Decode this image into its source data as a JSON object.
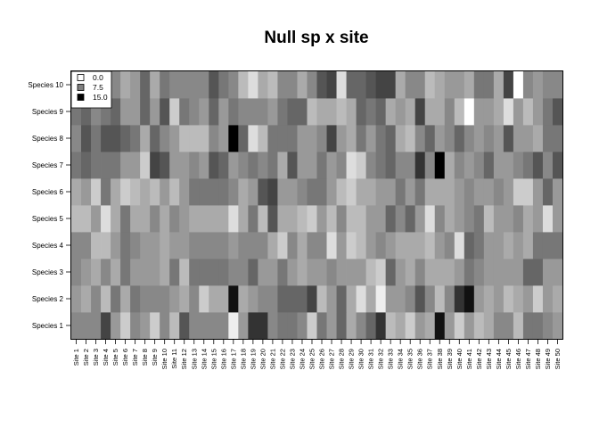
{
  "chart_data": {
    "type": "heatmap",
    "title": "Null sp x site",
    "xlabel": "",
    "ylabel": "",
    "rows": [
      "Species 1",
      "Species 2",
      "Species 3",
      "Species 4",
      "Species 5",
      "Species 6",
      "Species 7",
      "Species 8",
      "Species 9",
      "Species 10"
    ],
    "columns": [
      "Site 1",
      "Site 2",
      "Site 3",
      "Site 4",
      "Site 5",
      "Site 6",
      "Site 7",
      "Site 8",
      "Site 9",
      "Site 10",
      "Site 11",
      "Site 12",
      "Site 13",
      "Site 14",
      "Site 15",
      "Site 16",
      "Site 17",
      "Site 18",
      "Site 19",
      "Site 20",
      "Site 21",
      "Site 22",
      "Site 23",
      "Site 24",
      "Site 25",
      "Site 26",
      "Site 27",
      "Site 28",
      "Site 29",
      "Site 30",
      "Site 31",
      "Site 32",
      "Site 33",
      "Site 34",
      "Site 35",
      "Site 36",
      "Site 37",
      "Site 38",
      "Site 39",
      "Site 40",
      "Site 41",
      "Site 42",
      "Site 43",
      "Site 44",
      "Site 45",
      "Site 46",
      "Site 47",
      "Site 48",
      "Site 49",
      "Site 50"
    ],
    "value_range": [
      0,
      15
    ],
    "color_scale": {
      "low": "#ffffff",
      "high": "#000000"
    },
    "legend": {
      "position": "top-left",
      "entries": [
        {
          "label": "0.0",
          "color": "#ffffff"
        },
        {
          "label": "7.5",
          "color": "#808080"
        },
        {
          "label": "15.0",
          "color": "#000000"
        }
      ]
    },
    "values": [
      [
        7,
        7,
        7,
        11,
        6,
        3,
        7,
        6,
        3,
        7,
        4,
        10,
        7,
        7,
        7,
        7,
        1,
        6,
        12,
        12,
        7,
        8,
        8,
        7,
        3,
        8,
        6,
        9,
        5,
        7,
        9,
        12,
        4,
        5,
        3,
        6,
        5,
        14,
        6,
        3,
        6,
        4,
        5,
        7,
        7,
        4,
        8,
        8,
        7,
        6
      ],
      [
        6,
        5,
        7,
        4,
        8,
        5,
        8,
        7,
        7,
        7,
        6,
        5,
        7,
        3,
        5,
        5,
        14,
        5,
        6,
        7,
        7,
        9,
        9,
        9,
        11,
        4,
        6,
        9,
        5,
        2,
        5,
        1,
        6,
        6,
        7,
        10,
        7,
        4,
        7,
        12,
        14,
        6,
        5,
        6,
        4,
        5,
        6,
        3,
        6,
        5
      ],
      [
        7,
        6,
        5,
        7,
        5,
        8,
        6,
        6,
        6,
        5,
        8,
        4,
        8,
        8,
        8,
        8,
        7,
        7,
        9,
        6,
        6,
        8,
        6,
        5,
        6,
        6,
        7,
        6,
        6,
        6,
        4,
        3,
        9,
        6,
        5,
        7,
        5,
        5,
        5,
        6,
        8,
        7,
        6,
        6,
        6,
        6,
        9,
        9,
        6,
        6
      ],
      [
        7,
        7,
        4,
        4,
        6,
        8,
        7,
        6,
        6,
        5,
        6,
        6,
        7,
        7,
        7,
        7,
        6,
        7,
        7,
        7,
        5,
        3,
        7,
        5,
        7,
        7,
        2,
        6,
        3,
        4,
        6,
        7,
        6,
        5,
        5,
        5,
        4,
        6,
        7,
        2,
        9,
        8,
        6,
        6,
        5,
        6,
        5,
        8,
        8,
        8
      ],
      [
        4,
        4,
        6,
        2,
        5,
        8,
        5,
        5,
        7,
        5,
        7,
        6,
        5,
        5,
        5,
        5,
        2,
        5,
        8,
        4,
        10,
        5,
        5,
        4,
        3,
        6,
        4,
        7,
        4,
        4,
        6,
        6,
        9,
        7,
        9,
        6,
        2,
        7,
        5,
        6,
        7,
        8,
        4,
        6,
        6,
        7,
        5,
        6,
        2,
        6
      ],
      [
        5,
        6,
        3,
        8,
        5,
        3,
        4,
        5,
        4,
        6,
        4,
        6,
        8,
        8,
        8,
        8,
        7,
        5,
        6,
        10,
        11,
        6,
        6,
        7,
        8,
        8,
        6,
        4,
        3,
        5,
        5,
        6,
        6,
        8,
        6,
        8,
        5,
        5,
        5,
        6,
        7,
        6,
        6,
        7,
        6,
        3,
        3,
        6,
        9,
        6
      ],
      [
        8,
        9,
        8,
        8,
        8,
        6,
        6,
        3,
        11,
        10,
        6,
        6,
        7,
        6,
        10,
        9,
        6,
        7,
        8,
        7,
        8,
        5,
        10,
        6,
        6,
        8,
        6,
        7,
        2,
        3,
        7,
        8,
        9,
        7,
        7,
        12,
        7,
        15,
        5,
        7,
        6,
        7,
        9,
        6,
        6,
        7,
        8,
        10,
        7,
        10
      ],
      [
        7,
        10,
        8,
        10,
        10,
        9,
        8,
        5,
        9,
        7,
        6,
        4,
        4,
        4,
        7,
        6,
        15,
        9,
        2,
        4,
        8,
        8,
        8,
        6,
        6,
        7,
        11,
        6,
        5,
        8,
        6,
        8,
        9,
        5,
        4,
        7,
        9,
        6,
        7,
        9,
        7,
        6,
        7,
        6,
        10,
        6,
        6,
        5,
        8,
        8
      ],
      [
        8,
        9,
        7,
        8,
        9,
        6,
        6,
        9,
        6,
        10,
        3,
        8,
        7,
        6,
        9,
        6,
        8,
        7,
        7,
        7,
        6,
        8,
        9,
        9,
        4,
        5,
        5,
        4,
        5,
        9,
        8,
        9,
        5,
        6,
        5,
        11,
        5,
        5,
        7,
        4,
        0,
        6,
        6,
        5,
        2,
        6,
        4,
        6,
        8,
        10
      ],
      [
        7,
        7,
        6,
        7,
        7,
        5,
        6,
        9,
        5,
        8,
        7,
        7,
        7,
        7,
        10,
        8,
        7,
        4,
        2,
        5,
        4,
        7,
        7,
        5,
        7,
        10,
        11,
        2,
        9,
        9,
        10,
        11,
        11,
        5,
        7,
        7,
        4,
        5,
        6,
        6,
        5,
        8,
        8,
        5,
        11,
        0,
        7,
        6,
        7,
        7
      ]
    ]
  }
}
